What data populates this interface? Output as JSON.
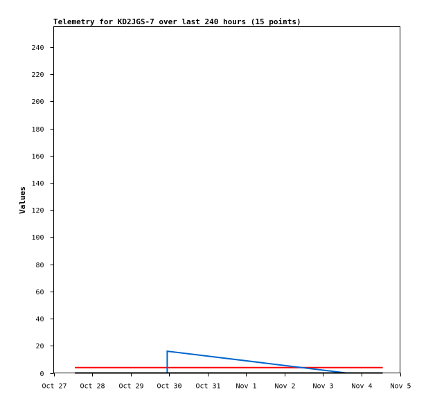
{
  "chart_data": {
    "type": "line",
    "title": "Telemetry for KD2JGS-7 over last 240 hours (15 points)",
    "xlabel": "",
    "ylabel": "Values",
    "x_ticks": [
      "Oct 27",
      "Oct 28",
      "Oct 29",
      "Oct 30",
      "Oct 31",
      "Nov 1",
      "Nov 2",
      "Nov 3",
      "Nov 4",
      "Nov 5"
    ],
    "y_ticks": [
      0,
      20,
      40,
      60,
      80,
      100,
      120,
      140,
      160,
      180,
      200,
      220,
      240
    ],
    "xlim": [
      0,
      9
    ],
    "ylim": [
      0,
      255
    ],
    "grid": false,
    "series": [
      {
        "color": "#ff0000",
        "x": [
          0.55,
          8.55
        ],
        "y": [
          4,
          4
        ]
      },
      {
        "color": "#0066cc",
        "x": [
          2.95,
          2.95,
          7.6
        ],
        "y": [
          0,
          16,
          0
        ]
      },
      {
        "color": "#000000",
        "x": [
          0.55,
          8.55
        ],
        "y": [
          0,
          0
        ]
      }
    ]
  }
}
